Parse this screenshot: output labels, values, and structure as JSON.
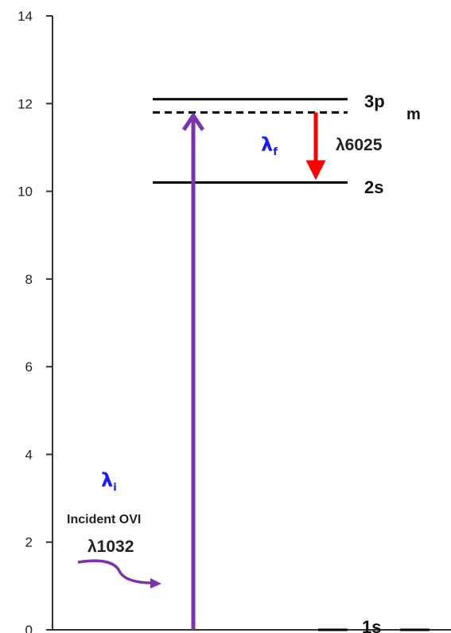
{
  "chart_data": {
    "type": "energy-level-diagram",
    "ylim": [
      0,
      14
    ],
    "y_ticks": [
      "0",
      "2",
      "4",
      "6",
      "8",
      "10",
      "12",
      "14"
    ],
    "levels": [
      {
        "label": "3p",
        "energy": 12.1,
        "style": "solid"
      },
      {
        "label": "",
        "energy": 11.8,
        "style": "dashed"
      },
      {
        "label": "2s",
        "energy": 10.2,
        "style": "solid"
      },
      {
        "label": "1s",
        "energy": 0,
        "style": "solid"
      }
    ],
    "virtual_level_label": "m",
    "transitions": [
      {
        "from": 0,
        "to": 11.8,
        "color": "#7b33b0",
        "direction": "up"
      },
      {
        "from": 11.8,
        "to": 10.2,
        "color": "#ff0000",
        "direction": "down",
        "label": "λ6025"
      }
    ],
    "annotations": {
      "lambda_f": "λ",
      "lambda_f_sub": "f",
      "lambda_i": "λ",
      "lambda_i_sub": "i",
      "incident": "Incident OVI",
      "incident_wavelength": "λ1032"
    },
    "colors": {
      "pump": "#7b33b0",
      "emission": "#ff0000",
      "lambda_text": "#1a1aff",
      "levels": "#000000"
    }
  }
}
